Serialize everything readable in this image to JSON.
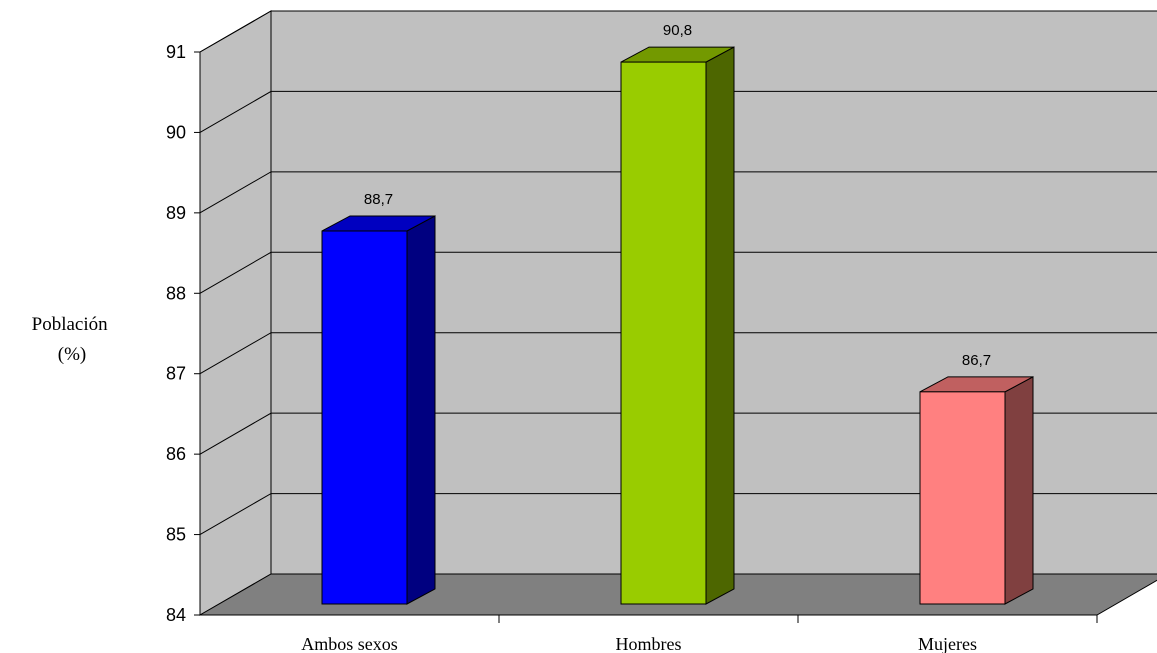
{
  "chart_data": {
    "type": "bar",
    "style": "3d-column",
    "categories": [
      "Ambos sexos",
      "Hombres",
      "Mujeres"
    ],
    "values": [
      88.7,
      90.8,
      86.7
    ],
    "data_labels": [
      "88,7",
      "90,8",
      "86,7"
    ],
    "ylabel_lines": [
      "Población",
      "(%)"
    ],
    "ylim": [
      84,
      91
    ],
    "yticks": [
      "84",
      "85",
      "86",
      "87",
      "88",
      "89",
      "90",
      "91"
    ],
    "grid": true,
    "legend": "none",
    "colors": {
      "walls": "#c0c0c0",
      "floor": "#808080",
      "bar_front": [
        "#0000ff",
        "#99cc00",
        "#ff8080"
      ],
      "bar_side": [
        "#000080",
        "#4d6600",
        "#804040"
      ],
      "bar_top": [
        "#0000c0",
        "#739900",
        "#c06060"
      ]
    }
  }
}
